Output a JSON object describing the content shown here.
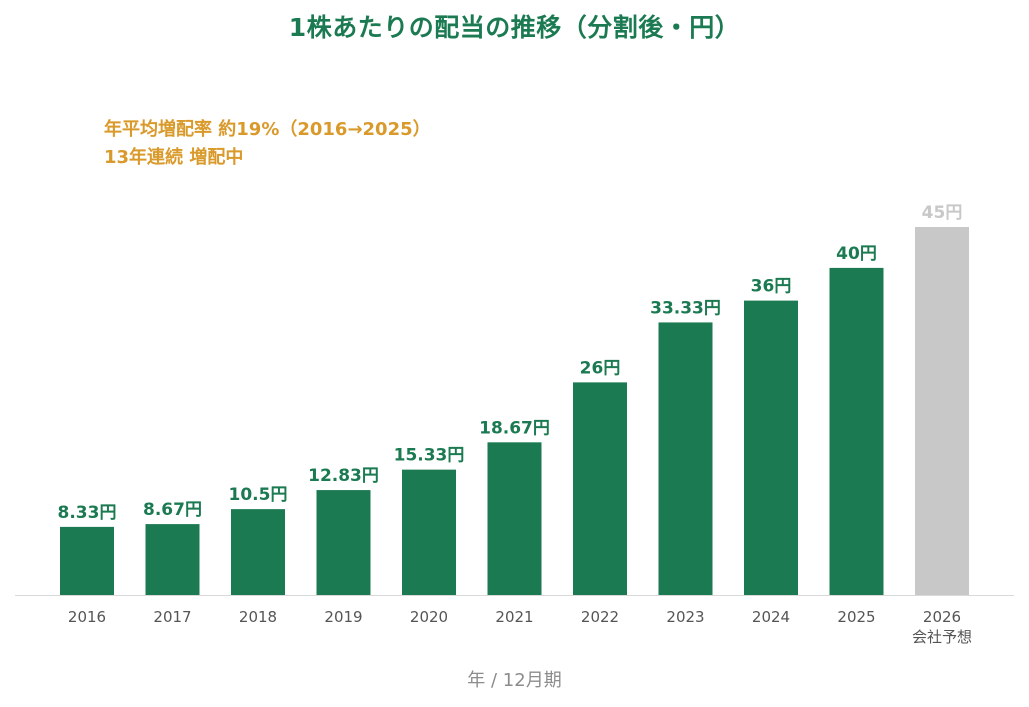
{
  "chart_data": {
    "type": "bar",
    "title": "1株あたりの配当の推移（分割後・円）",
    "annotations": [
      "年平均増配率 約19%（2016→2025）",
      "13年連続 増配中"
    ],
    "categories": [
      "2016",
      "2017",
      "2018",
      "2019",
      "2020",
      "2021",
      "2022",
      "2023",
      "2024",
      "2025",
      "2026"
    ],
    "category_sublabels": [
      "",
      "",
      "",
      "",
      "",
      "",
      "",
      "",
      "",
      "",
      "会社予想"
    ],
    "values": [
      8.33,
      8.67,
      10.5,
      12.83,
      15.33,
      18.67,
      26,
      33.33,
      36,
      40,
      45
    ],
    "value_labels": [
      "8.33円",
      "8.67円",
      "10.5円",
      "12.83円",
      "15.33円",
      "18.67円",
      "26円",
      "33.33円",
      "36円",
      "40円",
      "45円"
    ],
    "forecast": [
      false,
      false,
      false,
      false,
      false,
      false,
      false,
      false,
      false,
      false,
      true
    ],
    "xlabel": "年 / 12月期",
    "ylabel": "",
    "ylim": [
      0,
      45
    ],
    "grid": false,
    "legend": "none",
    "colors": {
      "actual": "#1b7a51",
      "forecast": "#c8c8c8",
      "title": "#1b7a51",
      "annotation": "#d99a2b",
      "axis_label": "#8c8c8c",
      "tick_label": "#555555",
      "baseline": "#d9d9d9"
    }
  }
}
